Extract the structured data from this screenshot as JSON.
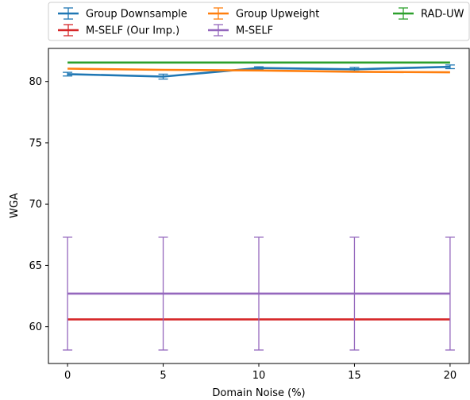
{
  "chart_data": {
    "type": "line",
    "xlabel": "Domain Noise (%)",
    "ylabel": "WGA",
    "x": [
      0,
      5,
      10,
      15,
      20
    ],
    "xticks": [
      "0",
      "5",
      "10",
      "15",
      "20"
    ],
    "yticks": [
      "60",
      "65",
      "70",
      "75",
      "80"
    ],
    "xlim": [
      -1,
      21
    ],
    "ylim": [
      57,
      82.7
    ],
    "grid": false,
    "legend_placement": "top",
    "series": [
      {
        "name": "Group Downsample",
        "color": "#1f77b4",
        "values": [
          80.6,
          80.4,
          81.1,
          81.0,
          81.2
        ],
        "errors": [
          0.15,
          0.2,
          0.1,
          0.15,
          0.15
        ]
      },
      {
        "name": "Group Upweight",
        "color": "#ff7f0e",
        "values": [
          81.05,
          80.95,
          80.9,
          80.8,
          80.75
        ],
        "errors": [
          0,
          0,
          0,
          0,
          0
        ]
      },
      {
        "name": "RAD-UW",
        "color": "#2ca02c",
        "values": [
          81.55,
          81.55,
          81.55,
          81.55,
          81.55
        ],
        "errors": [
          0,
          0,
          0,
          0,
          0
        ]
      },
      {
        "name": "M-SELF (Our Imp.)",
        "color": "#d62728",
        "values": [
          60.6,
          60.6,
          60.6,
          60.6,
          60.6
        ],
        "errors": [
          0,
          0,
          0,
          0,
          0
        ]
      },
      {
        "name": "M-SELF",
        "color": "#9467bd",
        "values": [
          62.7,
          62.7,
          62.7,
          62.7,
          62.7
        ],
        "errors": [
          4.6,
          4.6,
          4.6,
          4.6,
          4.6
        ]
      }
    ]
  }
}
